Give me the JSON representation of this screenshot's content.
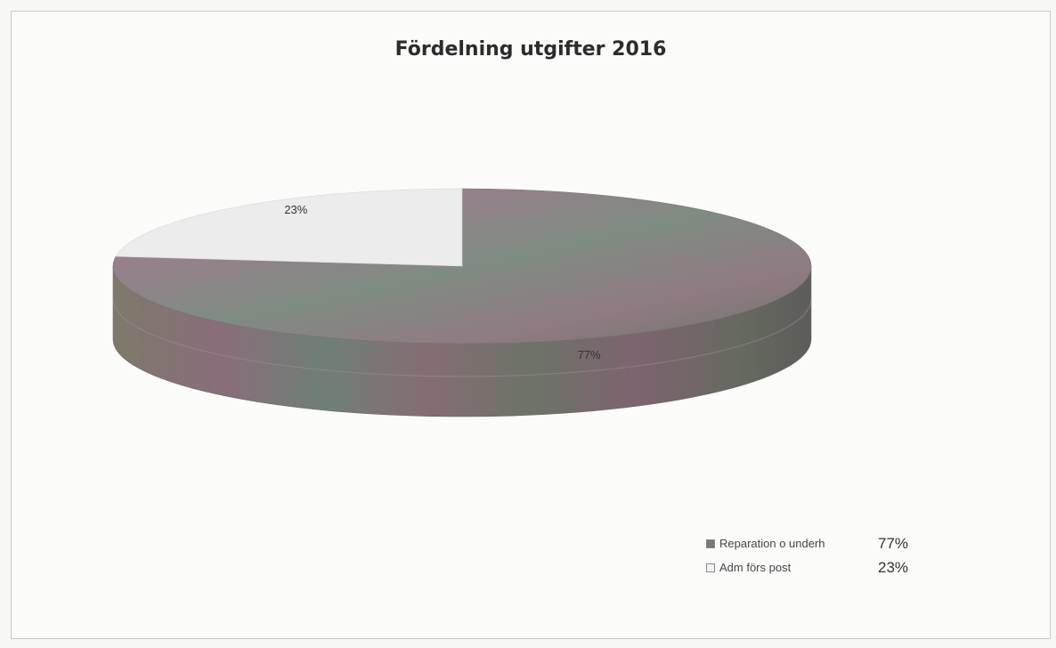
{
  "chart_data": {
    "type": "pie",
    "title": "Fördelning utgifter 2016",
    "slices": [
      {
        "label": "Reparation o underh",
        "value": 77,
        "data_label": "77%",
        "color": "#8a7c80"
      },
      {
        "label": "Adm förs post",
        "value": 23,
        "data_label": "23%",
        "color": "#ececec"
      }
    ],
    "legend": {
      "position": "bottom-right",
      "entries": [
        {
          "label": "Reparation o underh",
          "value_text": "77%"
        },
        {
          "label": "Adm förs post",
          "value_text": "23%"
        }
      ]
    },
    "style": "3d"
  }
}
